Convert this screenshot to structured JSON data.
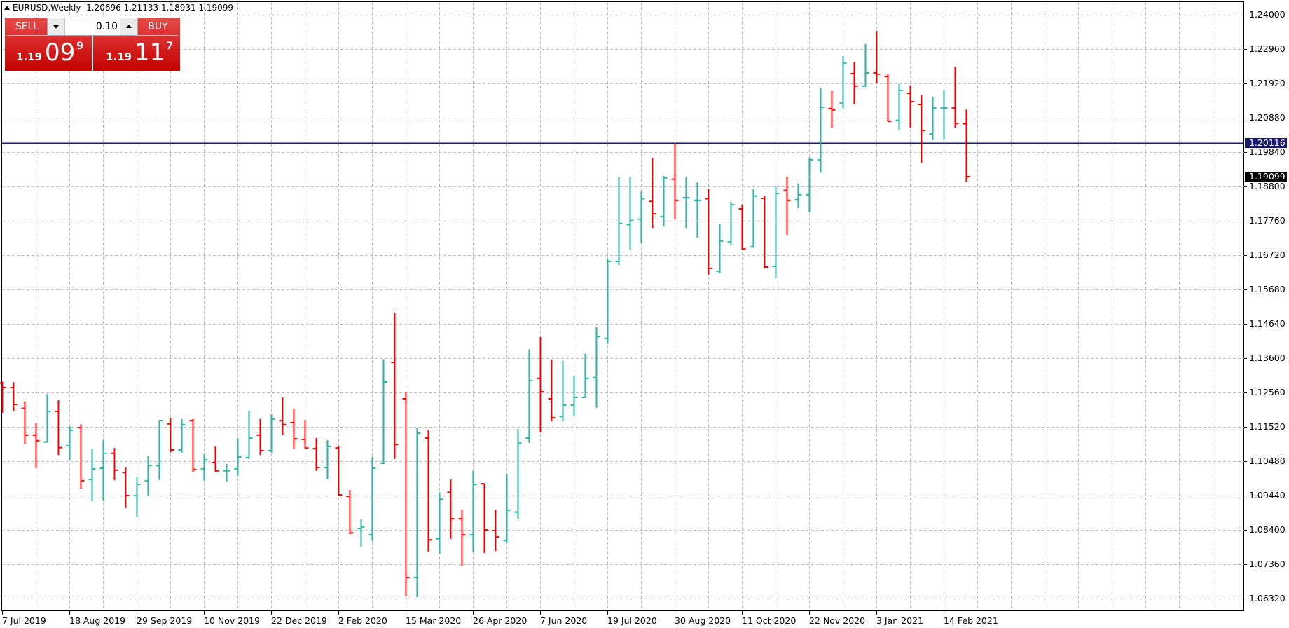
{
  "header": {
    "symbol_timeframe": "EURUSD,Weekly",
    "ohlc": "1.20696 1.21133 1.18931 1.19099"
  },
  "trade_panel": {
    "sell_label": "SELL",
    "buy_label": "BUY",
    "lot_value": "0.10",
    "sell_price": {
      "prefix": "1.19",
      "big": "09",
      "sup": "9"
    },
    "buy_price": {
      "prefix": "1.19",
      "big": "11",
      "sup": "7"
    }
  },
  "colors": {
    "bull": "#26b5a8",
    "bear": "#ff0000",
    "grid": "#c0c0c0",
    "hline": "#1a1a6e",
    "bid_line": "#c0c0c0",
    "tag_hline_bg": "#1a1a6e",
    "tag_bid_bg": "#000000"
  },
  "chart_data": {
    "type": "ohlc",
    "title": "EURUSD,Weekly",
    "xlabel": "",
    "ylabel": "",
    "ylim": [
      1.0585,
      1.2445
    ],
    "grid": true,
    "y_ticks": [
      "1.24000",
      "1.22960",
      "1.21920",
      "1.20880",
      "1.19840",
      "1.18800",
      "1.17760",
      "1.16720",
      "1.15680",
      "1.14640",
      "1.13600",
      "1.12560",
      "1.11520",
      "1.10480",
      "1.09440",
      "1.08400",
      "1.07360",
      "1.06320"
    ],
    "x_tick_labels": [
      "7 Jul 2019",
      "18 Aug 2019",
      "29 Sep 2019",
      "10 Nov 2019",
      "22 Dec 2019",
      "2 Feb 2020",
      "15 Mar 2020",
      "26 Apr 2020",
      "7 Jun 2020",
      "19 Jul 2020",
      "30 Aug 2020",
      "11 Oct 2020",
      "22 Nov 2020",
      "3 Jan 2021",
      "14 Feb 2021"
    ],
    "horizontal_line": {
      "price": "1.20116"
    },
    "bid_line": {
      "price": "1.19099"
    },
    "bars": [
      {
        "o": 1.1285,
        "h": 1.1289,
        "l": 1.1195,
        "c": 1.1271
      },
      {
        "o": 1.1271,
        "h": 1.1287,
        "l": 1.12,
        "c": 1.122
      },
      {
        "o": 1.1208,
        "h": 1.1229,
        "l": 1.1101,
        "c": 1.1127
      },
      {
        "o": 1.1127,
        "h": 1.1164,
        "l": 1.1027,
        "c": 1.111
      },
      {
        "o": 1.1106,
        "h": 1.1252,
        "l": 1.1106,
        "c": 1.1199
      },
      {
        "o": 1.1199,
        "h": 1.1233,
        "l": 1.1067,
        "c": 1.1089
      },
      {
        "o": 1.1095,
        "h": 1.1154,
        "l": 1.1052,
        "c": 1.1142
      },
      {
        "o": 1.115,
        "h": 1.116,
        "l": 1.0965,
        "c": 1.0989
      },
      {
        "o": 1.0993,
        "h": 1.1086,
        "l": 1.0927,
        "c": 1.1025
      },
      {
        "o": 1.1027,
        "h": 1.1112,
        "l": 1.0927,
        "c": 1.1072
      },
      {
        "o": 1.1072,
        "h": 1.1088,
        "l": 1.0991,
        "c": 1.1021
      },
      {
        "o": 1.1014,
        "h": 1.103,
        "l": 1.0906,
        "c": 1.0944
      },
      {
        "o": 1.0944,
        "h": 1.1002,
        "l": 1.088,
        "c": 1.0978
      },
      {
        "o": 1.0989,
        "h": 1.1063,
        "l": 1.0942,
        "c": 1.1035
      },
      {
        "o": 1.1035,
        "h": 1.1173,
        "l": 1.0991,
        "c": 1.1171
      },
      {
        "o": 1.1161,
        "h": 1.118,
        "l": 1.1074,
        "c": 1.1082
      },
      {
        "o": 1.1082,
        "h": 1.1176,
        "l": 1.1074,
        "c": 1.1159
      },
      {
        "o": 1.1171,
        "h": 1.1176,
        "l": 1.1016,
        "c": 1.1023
      },
      {
        "o": 1.1025,
        "h": 1.1069,
        "l": 1.0989,
        "c": 1.1052
      },
      {
        "o": 1.1044,
        "h": 1.1093,
        "l": 1.1016,
        "c": 1.1019
      },
      {
        "o": 1.1019,
        "h": 1.104,
        "l": 1.0986,
        "c": 1.1019
      },
      {
        "o": 1.1025,
        "h": 1.1118,
        "l": 1.1004,
        "c": 1.1061
      },
      {
        "o": 1.1059,
        "h": 1.1201,
        "l": 1.1055,
        "c": 1.1118
      },
      {
        "o": 1.1127,
        "h": 1.1176,
        "l": 1.1067,
        "c": 1.108
      },
      {
        "o": 1.108,
        "h": 1.119,
        "l": 1.1074,
        "c": 1.1176
      },
      {
        "o": 1.1171,
        "h": 1.1241,
        "l": 1.1127,
        "c": 1.1159
      },
      {
        "o": 1.1165,
        "h": 1.1207,
        "l": 1.1086,
        "c": 1.1116
      },
      {
        "o": 1.1114,
        "h": 1.1173,
        "l": 1.1086,
        "c": 1.1088
      },
      {
        "o": 1.1086,
        "h": 1.1118,
        "l": 1.1019,
        "c": 1.1029
      },
      {
        "o": 1.1029,
        "h": 1.1112,
        "l": 1.0993,
        "c": 1.1093
      },
      {
        "o": 1.1088,
        "h": 1.1095,
        "l": 1.0944,
        "c": 1.0946
      },
      {
        "o": 1.0942,
        "h": 1.0961,
        "l": 1.0827,
        "c": 1.0831
      },
      {
        "o": 1.0844,
        "h": 1.0872,
        "l": 1.0789,
        "c": 1.0849
      },
      {
        "o": 1.0825,
        "h": 1.1061,
        "l": 1.0806,
        "c": 1.1027
      },
      {
        "o": 1.1042,
        "h": 1.1357,
        "l": 1.104,
        "c": 1.1288
      },
      {
        "o": 1.1347,
        "h": 1.1498,
        "l": 1.1055,
        "c": 1.1099
      },
      {
        "o": 1.1237,
        "h": 1.1257,
        "l": 1.0638,
        "c": 1.0696
      },
      {
        "o": 1.0696,
        "h": 1.1148,
        "l": 1.0636,
        "c": 1.1133
      },
      {
        "o": 1.1118,
        "h": 1.1144,
        "l": 1.0774,
        "c": 1.081
      },
      {
        "o": 1.0813,
        "h": 1.0954,
        "l": 1.0768,
        "c": 1.0933
      },
      {
        "o": 1.0954,
        "h": 1.0993,
        "l": 1.0813,
        "c": 1.0874
      },
      {
        "o": 1.0874,
        "h": 1.09,
        "l": 1.073,
        "c": 1.0825
      },
      {
        "o": 1.0825,
        "h": 1.1019,
        "l": 1.0774,
        "c": 1.0978
      },
      {
        "o": 1.098,
        "h": 1.098,
        "l": 1.077,
        "c": 1.084
      },
      {
        "o": 1.0838,
        "h": 1.09,
        "l": 1.0776,
        "c": 1.0819
      },
      {
        "o": 1.0808,
        "h": 1.101,
        "l": 1.08,
        "c": 1.09
      },
      {
        "o": 1.0894,
        "h": 1.1146,
        "l": 1.0874,
        "c": 1.1103
      },
      {
        "o": 1.1118,
        "h": 1.1386,
        "l": 1.1103,
        "c": 1.1292
      },
      {
        "o": 1.1299,
        "h": 1.1424,
        "l": 1.1135,
        "c": 1.1258
      },
      {
        "o": 1.1237,
        "h": 1.1356,
        "l": 1.1169,
        "c": 1.118
      },
      {
        "o": 1.1184,
        "h": 1.1352,
        "l": 1.1169,
        "c": 1.1218
      },
      {
        "o": 1.1218,
        "h": 1.1305,
        "l": 1.1186,
        "c": 1.1241
      },
      {
        "o": 1.1241,
        "h": 1.1373,
        "l": 1.1241,
        "c": 1.1299
      },
      {
        "o": 1.1301,
        "h": 1.1454,
        "l": 1.121,
        "c": 1.1426
      },
      {
        "o": 1.142,
        "h": 1.1659,
        "l": 1.1403,
        "c": 1.1653
      },
      {
        "o": 1.1653,
        "h": 1.1908,
        "l": 1.1642,
        "c": 1.1768
      },
      {
        "o": 1.1764,
        "h": 1.191,
        "l": 1.1689,
        "c": 1.1777
      },
      {
        "o": 1.1781,
        "h": 1.1865,
        "l": 1.1708,
        "c": 1.1843
      },
      {
        "o": 1.1835,
        "h": 1.1966,
        "l": 1.1753,
        "c": 1.1797
      },
      {
        "o": 1.1789,
        "h": 1.1912,
        "l": 1.1759,
        "c": 1.1906
      },
      {
        "o": 1.1902,
        "h": 1.2011,
        "l": 1.178,
        "c": 1.1838
      },
      {
        "o": 1.1846,
        "h": 1.191,
        "l": 1.1753,
        "c": 1.1846
      },
      {
        "o": 1.1838,
        "h": 1.1893,
        "l": 1.1725,
        "c": 1.1838
      },
      {
        "o": 1.1843,
        "h": 1.1874,
        "l": 1.1613,
        "c": 1.1632
      },
      {
        "o": 1.1623,
        "h": 1.1766,
        "l": 1.1617,
        "c": 1.1715
      },
      {
        "o": 1.1712,
        "h": 1.1834,
        "l": 1.1702,
        "c": 1.1825
      },
      {
        "o": 1.1812,
        "h": 1.1825,
        "l": 1.1689,
        "c": 1.1691
      },
      {
        "o": 1.1697,
        "h": 1.1874,
        "l": 1.1695,
        "c": 1.1851
      },
      {
        "o": 1.1844,
        "h": 1.1851,
        "l": 1.1632,
        "c": 1.1636
      },
      {
        "o": 1.1638,
        "h": 1.188,
        "l": 1.1602,
        "c": 1.1859
      },
      {
        "o": 1.1868,
        "h": 1.191,
        "l": 1.1731,
        "c": 1.1838
      },
      {
        "o": 1.184,
        "h": 1.1889,
        "l": 1.1814,
        "c": 1.1855
      },
      {
        "o": 1.1855,
        "h": 1.1968,
        "l": 1.1802,
        "c": 1.1961
      },
      {
        "o": 1.1961,
        "h": 1.2178,
        "l": 1.1922,
        "c": 1.212
      },
      {
        "o": 1.2116,
        "h": 1.2169,
        "l": 1.2058,
        "c": 1.2112
      },
      {
        "o": 1.2133,
        "h": 1.2275,
        "l": 1.2116,
        "c": 1.2254
      },
      {
        "o": 1.2222,
        "h": 1.2258,
        "l": 1.2129,
        "c": 1.2184
      },
      {
        "o": 1.2184,
        "h": 1.2311,
        "l": 1.2182,
        "c": 1.2224
      },
      {
        "o": 1.2224,
        "h": 1.2351,
        "l": 1.2192,
        "c": 1.222
      },
      {
        "o": 1.2213,
        "h": 1.2222,
        "l": 1.2077,
        "c": 1.2077
      },
      {
        "o": 1.208,
        "h": 1.219,
        "l": 1.2052,
        "c": 1.2171
      },
      {
        "o": 1.2162,
        "h": 1.2186,
        "l": 1.2058,
        "c": 1.2137
      },
      {
        "o": 1.2128,
        "h": 1.2156,
        "l": 1.1952,
        "c": 1.205
      },
      {
        "o": 1.2039,
        "h": 1.2152,
        "l": 1.202,
        "c": 1.2118
      },
      {
        "o": 1.2118,
        "h": 1.2171,
        "l": 1.2022,
        "c": 1.2118
      },
      {
        "o": 1.2118,
        "h": 1.2243,
        "l": 1.2058,
        "c": 1.2071
      },
      {
        "o": 1.207,
        "h": 1.2113,
        "l": 1.1893,
        "c": 1.191
      }
    ]
  }
}
